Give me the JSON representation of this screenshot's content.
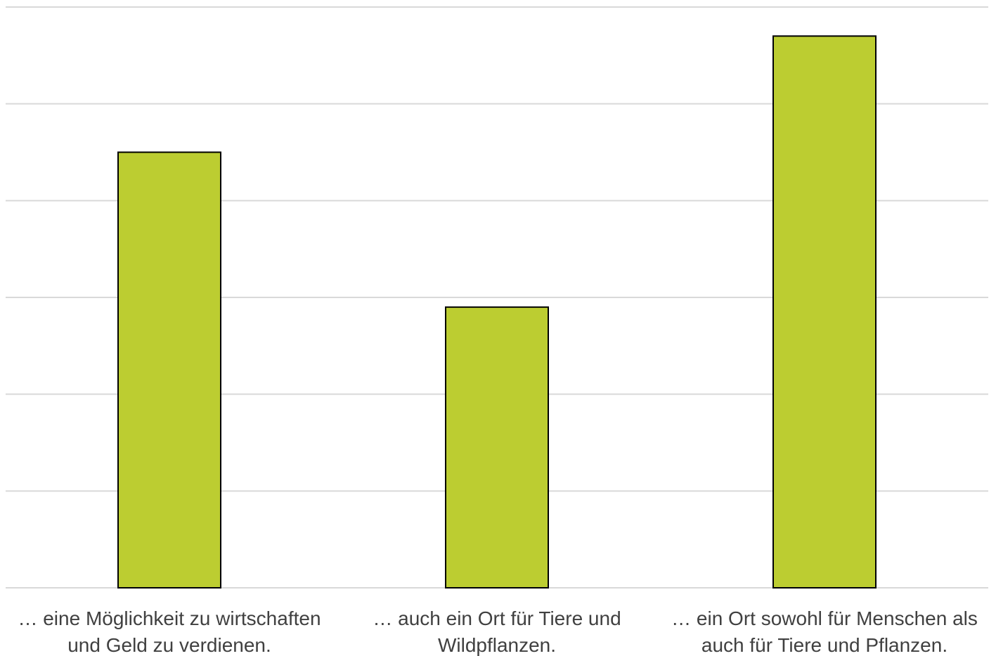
{
  "chart_data": {
    "type": "bar",
    "categories": [
      [
        "… eine Möglichkeit zu wirtschaften",
        "und Geld zu verdienen."
      ],
      [
        "… auch ein Ort für Tiere und",
        "Wildpflanzen."
      ],
      [
        "… ein Ort sowohl für Menschen als",
        "auch für Tiere und Pflanzen."
      ]
    ],
    "values": [
      45,
      29,
      57
    ],
    "ylim": [
      0,
      60
    ],
    "grid": true,
    "bar_color": "#bccd31",
    "bar_edge_color": "#000000",
    "grid_color": "#d9d9d9",
    "label_color": "#404040"
  }
}
